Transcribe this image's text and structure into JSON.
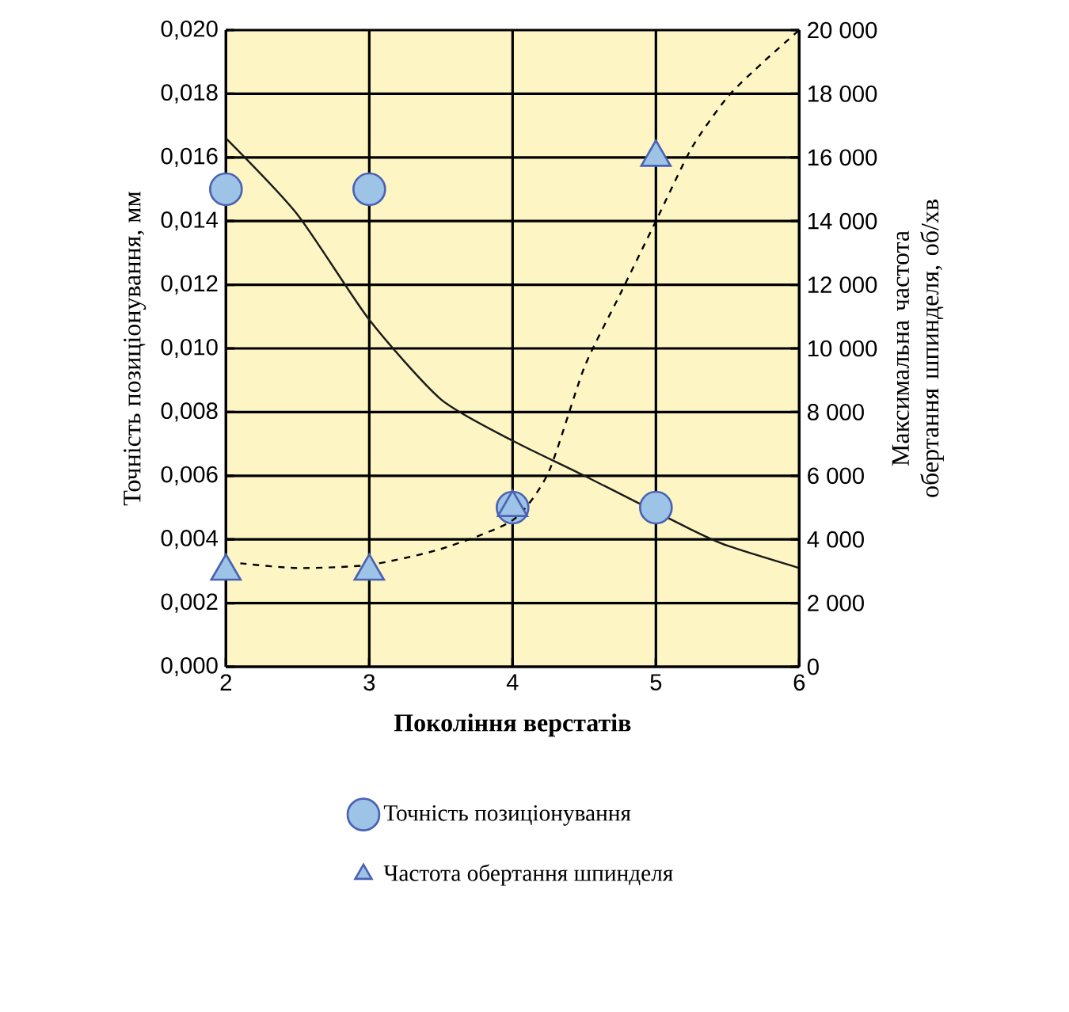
{
  "chart_data": {
    "type": "scatter",
    "xlabel": "Покоління верстатів",
    "ylabel": "Точність позиціонування, мм",
    "y2label": "Максимальна частота обертання шпинделя, об/хв",
    "x": [
      2,
      3,
      4,
      5
    ],
    "xlim": [
      2,
      6
    ],
    "xticks": [
      2,
      3,
      4,
      5,
      6
    ],
    "ylim": [
      0,
      0.02
    ],
    "yticks": [
      {
        "value": 0,
        "label": "0,000"
      },
      {
        "value": 0.002,
        "label": "0,002"
      },
      {
        "value": 0.004,
        "label": "0,004"
      },
      {
        "value": 0.006,
        "label": "0,006"
      },
      {
        "value": 0.008,
        "label": "0,008"
      },
      {
        "value": 0.01,
        "label": "0,010"
      },
      {
        "value": 0.012,
        "label": "0,012"
      },
      {
        "value": 0.014,
        "label": "0,014"
      },
      {
        "value": 0.016,
        "label": "0,016"
      },
      {
        "value": 0.018,
        "label": "0,018"
      },
      {
        "value": 0.02,
        "label": "0,020"
      }
    ],
    "y2lim": [
      0,
      20000
    ],
    "y2ticks": [
      0,
      {
        "value": 2000,
        "label": "2 000"
      },
      {
        "value": 4000,
        "label": "4 000"
      },
      {
        "value": 6000,
        "label": "6 000"
      },
      {
        "value": 8000,
        "label": "8 000"
      },
      {
        "value": 10000,
        "label": "10 000"
      },
      {
        "value": 12000,
        "label": "12 000"
      },
      {
        "value": 14000,
        "label": "14 000"
      },
      {
        "value": 16000,
        "label": "16 000"
      },
      {
        "value": 18000,
        "label": "18 000"
      },
      {
        "value": 20000,
        "label": "20 000"
      }
    ],
    "grid": true,
    "legend": "bottom",
    "series": [
      {
        "name": "Точність позиціонування",
        "marker": "circle",
        "color": "#9dc3e6",
        "values": [
          0.015,
          0.015,
          0.005,
          0.005
        ]
      },
      {
        "name": "Частота обертання шпинделя",
        "marker": "triangle",
        "axis": "y2",
        "color": "#9dc3e6",
        "values": [
          3000,
          3000,
          5000,
          16000
        ]
      },
      {
        "type": "line",
        "marker": "none",
        "line_style": "solid",
        "color": "#1a1a1a",
        "x": [
          2,
          2.5,
          3,
          3.5,
          4,
          4.5,
          5.25,
          5.5,
          6
        ],
        "values": [
          0.0166,
          0.0142,
          0.0109,
          0.0084,
          0.0071,
          0.006,
          0.0043,
          0.0038,
          0.0031
        ]
      },
      {
        "type": "line",
        "marker": "none",
        "line_style": "dashed",
        "axis": "y2",
        "color": "#000000",
        "x": [
          2.1,
          2.5,
          3,
          3.5,
          4,
          4.25,
          4.5,
          4.75,
          5,
          5.25,
          5.5,
          5.75,
          6
        ],
        "values": [
          3250,
          3100,
          3200,
          3700,
          4600,
          6100,
          9400,
          11700,
          14000,
          16300,
          17900,
          19000,
          20000
        ]
      }
    ]
  }
}
